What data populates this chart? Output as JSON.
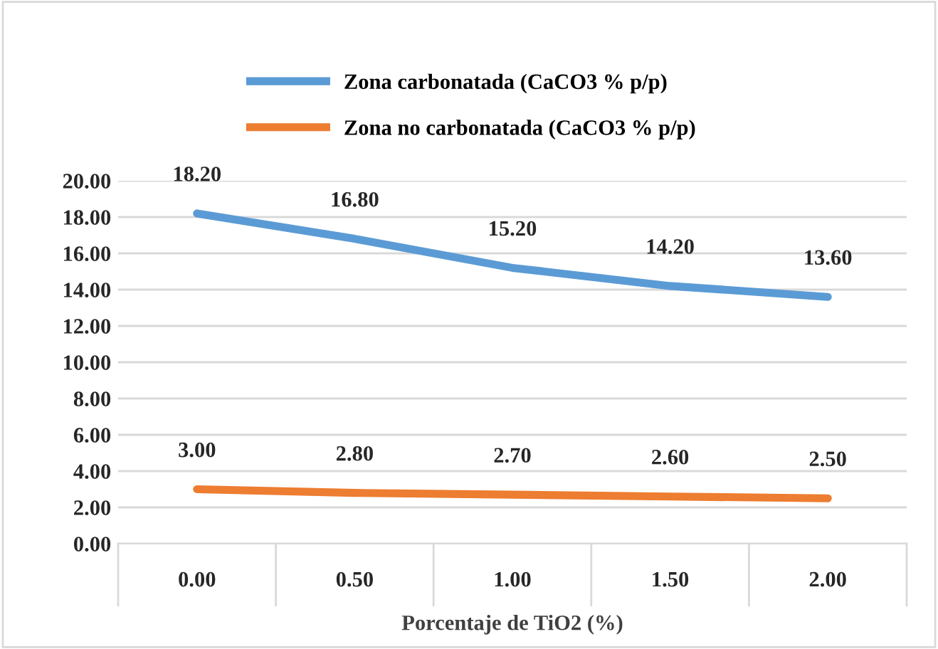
{
  "chart_data": {
    "type": "line",
    "xlabel": "Porcentaje de TiO2 (%)",
    "categories": [
      "0.00",
      "0.50",
      "1.00",
      "1.50",
      "2.00"
    ],
    "series": [
      {
        "name": "Zona carbonatada (CaCO3 % p/p)",
        "color": "#5b9bd5",
        "values": [
          18.2,
          16.8,
          15.2,
          14.2,
          13.6
        ],
        "value_labels": [
          "18.20",
          "16.80",
          "15.20",
          "14.20",
          "13.60"
        ]
      },
      {
        "name": "Zona no carbonatada (CaCO3 % p/p)",
        "color": "#ed7d31",
        "values": [
          3.0,
          2.8,
          2.7,
          2.6,
          2.5
        ],
        "value_labels": [
          "3.00",
          "2.80",
          "2.70",
          "2.60",
          "2.50"
        ]
      }
    ],
    "ylim": [
      0,
      20
    ],
    "yticks": [
      {
        "value": 0,
        "label": "0.00"
      },
      {
        "value": 2,
        "label": "2.00"
      },
      {
        "value": 4,
        "label": "4.00"
      },
      {
        "value": 6,
        "label": "6.00"
      },
      {
        "value": 8,
        "label": "8.00"
      },
      {
        "value": 10,
        "label": "10.00"
      },
      {
        "value": 12,
        "label": "12.00"
      },
      {
        "value": 14,
        "label": "14.00"
      },
      {
        "value": 16,
        "label": "16.00"
      },
      {
        "value": 18,
        "label": "18.00"
      },
      {
        "value": 20,
        "label": "20.00"
      }
    ],
    "grid": "y",
    "legend": "top",
    "marker": "none",
    "line_style": "solid"
  }
}
